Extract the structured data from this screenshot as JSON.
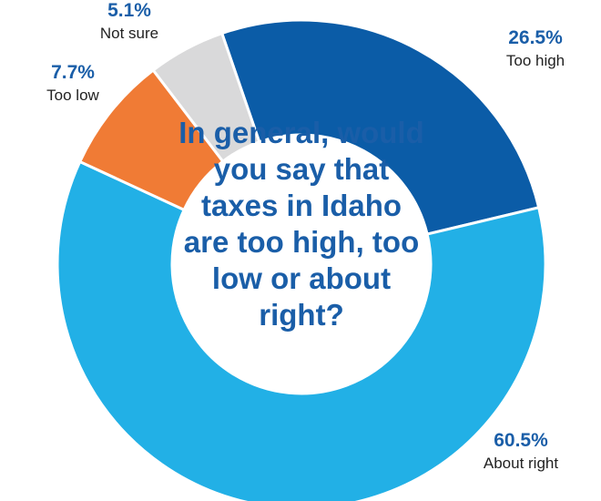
{
  "chart_data": {
    "type": "donut",
    "title": "In general, would you say that taxes in Idaho are too high, too low or about right?",
    "categories": [
      "Too high",
      "About right",
      "Too low",
      "Not sure"
    ],
    "values": [
      26.5,
      60.5,
      7.7,
      5.1
    ],
    "value_labels": [
      "26.5%",
      "60.5%",
      "7.7%",
      "5.1%"
    ],
    "colors": [
      "#0b5ca7",
      "#22b0e6",
      "#f07b35",
      "#d9d9da"
    ]
  }
}
